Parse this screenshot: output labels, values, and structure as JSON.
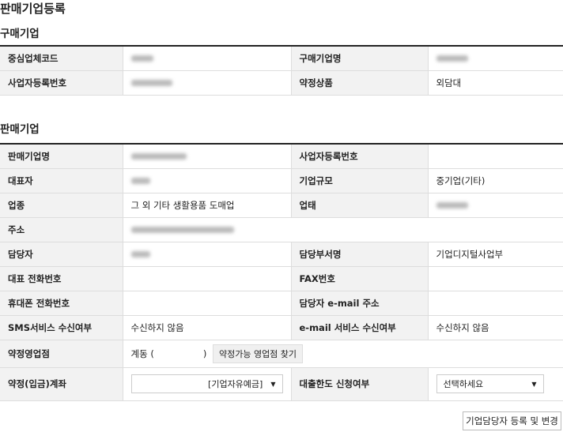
{
  "page_title": "판매기업등록",
  "buyer": {
    "title": "구매기업",
    "labels": [
      "중심업체코드",
      "구매기업명",
      "사업자등록번호",
      "약정상품"
    ],
    "product": "외담대"
  },
  "seller": {
    "title": "판매기업",
    "labels": {
      "name": "판매기업명",
      "bizno": "사업자등록번호",
      "ceo": "대표자",
      "size": "기업규모",
      "industry": "업종",
      "type": "업태",
      "addr": "주소",
      "manager": "담당자",
      "dept": "담당부서명",
      "tel": "대표 전화번호",
      "fax": "FAX번호",
      "mobile": "휴대폰 전화번호",
      "email": "담당자 e-mail 주소",
      "sms": "SMS서비스 수신여부",
      "email_svc": "e-mail 서비스 수신여부",
      "branch": "약정영업점",
      "account": "약정(입금)계좌",
      "loan": "대출한도 신청여부"
    },
    "values": {
      "size": "중기업(기타)",
      "industry": "그 외 기타 생활용품 도매업",
      "dept": "기업디지털사업부",
      "sms": "수신하지 않음",
      "email_svc": "수신하지 않음",
      "branch_prefix": "계동 (",
      "branch_suffix": ")",
      "account": "[기업자유예금]",
      "loan": "선택하세요"
    },
    "find_branch_button": "약정가능 영업점 찾기"
  },
  "register_button": "기업담당자 등록 및 변경"
}
